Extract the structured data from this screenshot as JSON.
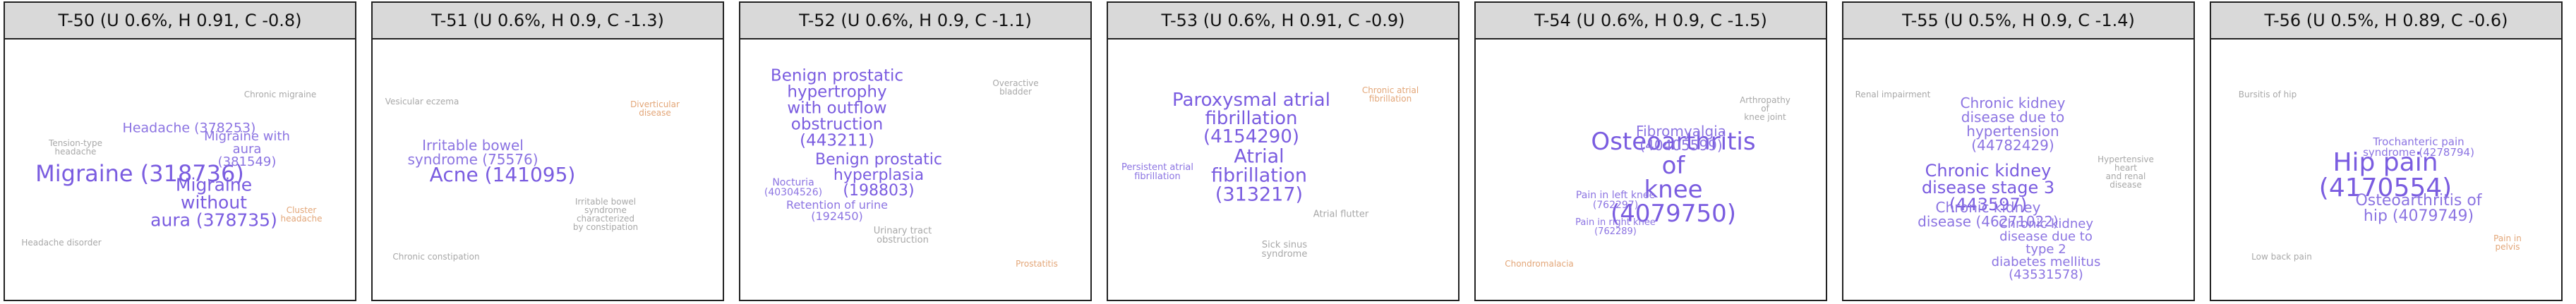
{
  "panels": [
    {
      "title": "T-50 (U 0.6%, H 0.91, C -0.8)",
      "words": [
        "Migraine (318736)",
        "Migraine without\naura (378735)",
        "Headache (378253)",
        "Migraine with aura\n(381549)",
        "Tension-type\nheadache",
        "Chronic migraine",
        "Cluster headache",
        "Headache disorder"
      ]
    },
    {
      "title": "T-51 (U 0.6%, H 0.9, C -1.3)",
      "words": [
        "Acne (141095)",
        "Irritable bowel\nsyndrome (75576)",
        "Irritable bowel\nsyndrome\ncharacterized\nby constipation",
        "Vesicular eczema",
        "Diverticular disease",
        "Chronic constipation"
      ]
    },
    {
      "title": "T-52 (U 0.6%, H 0.9, C -1.1)",
      "words": [
        "Benign prostatic\nhypertrophy\nwith outflow\nobstruction\n(443211)",
        "Benign prostatic\nhyperplasia\n(198803)",
        "Nocturia\n(40304526)",
        "Retention of urine\n(192450)",
        "Urinary tract\nobstruction",
        "Overactive bladder",
        "Prostatitis"
      ]
    },
    {
      "title": "T-53 (U 0.6%, H 0.91, C -0.9)",
      "words": [
        "Paroxysmal atrial\nfibrillation\n(4154290)",
        "Atrial\nfibrillation\n(313217)",
        "Persistent atrial\nfibrillation",
        "Atrial flutter",
        "Chronic atrial fibrillation",
        "Sick sinus\nsyndrome"
      ]
    },
    {
      "title": "T-54 (U 0.6%, H 0.9, C -1.5)",
      "words": [
        "Osteoarthritis of\nknee (4079750)",
        "Fibromyalgia\n(40405599)",
        "Pain in left knee\n(762297)",
        "Pain in right knee\n(762289)",
        "Arthropathy of\nknee joint",
        "Chondromalacia"
      ]
    },
    {
      "title": "T-55 (U 0.5%, H 0.9, C -1.4)",
      "words": [
        "Chronic kidney\ndisease stage 3\n(443597)",
        "Chronic kidney\ndisease due to\nhypertension\n(44782429)",
        "Chronic kidney\ndisease (46271022)",
        "Chronic kidney\ndisease due to\ntype 2\ndiabetes mellitus\n(43531578)",
        "Hypertensive heart\nand renal disease",
        "Renal impairment"
      ]
    },
    {
      "title": "T-56 (U 0.5%, H 0.89, C -0.6)",
      "words": [
        "Hip pain (4170554)",
        "Osteoarthritis of\nhip (4079749)",
        "Trochanteric pain\nsyndrome (4278794)",
        "Bursitis of hip",
        "Pain in pelvis",
        "Low back pain"
      ]
    }
  ]
}
